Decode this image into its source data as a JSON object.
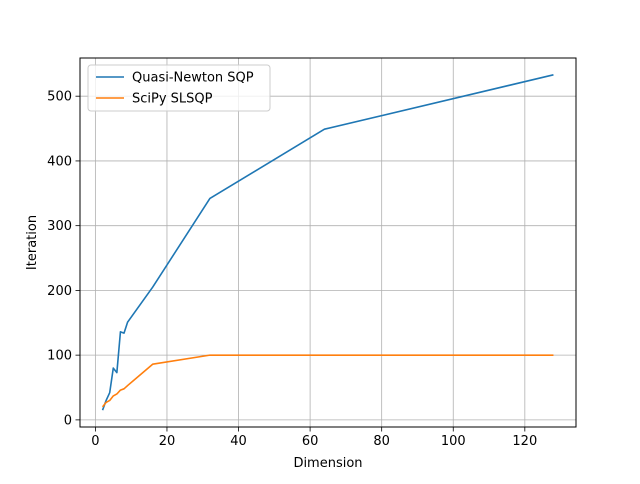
{
  "chart_data": {
    "type": "line",
    "title": "",
    "xlabel": "Dimension",
    "ylabel": "Iteration",
    "xlim": [
      -4.3,
      134.3
    ],
    "ylim": [
      -11,
      559
    ],
    "xticks": [
      0,
      20,
      40,
      60,
      80,
      100,
      120
    ],
    "yticks": [
      0,
      100,
      200,
      300,
      400,
      500
    ],
    "grid": true,
    "legend_position": "top-left",
    "series": [
      {
        "name": "Quasi-Newton SQP",
        "color": "#1f77b4",
        "x": [
          2,
          3,
          4,
          5,
          6,
          7,
          8,
          9,
          16,
          32,
          64,
          128
        ],
        "y": [
          15,
          30,
          42,
          80,
          73,
          136,
          134,
          151,
          205,
          342,
          449,
          533
        ]
      },
      {
        "name": "SciPy SLSQP",
        "color": "#ff7f0e",
        "x": [
          2,
          3,
          4,
          5,
          6,
          7,
          8,
          9,
          16,
          32,
          64,
          128
        ],
        "y": [
          20,
          27,
          30,
          37,
          40,
          46,
          48,
          53,
          86,
          100,
          100,
          100
        ]
      }
    ]
  }
}
